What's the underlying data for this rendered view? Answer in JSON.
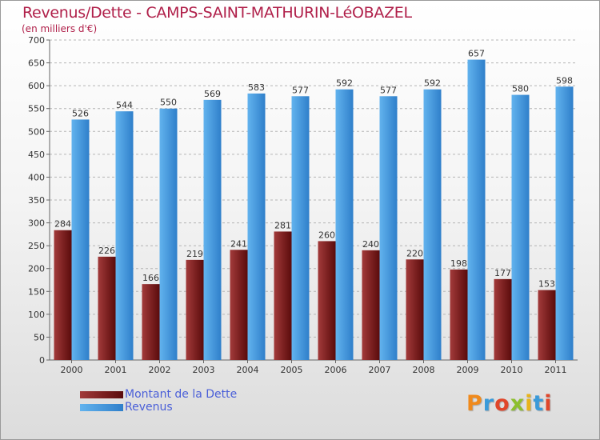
{
  "header": {
    "title": "Revenus/Dette - CAMPS-SAINT-MATHURIN-LéOBAZEL",
    "subtitle": "(en milliers d'€)"
  },
  "colors": {
    "title": "#b0204a",
    "dette_dark": "#5a0b0b",
    "dette_light": "#a23a3a",
    "revenus_dark": "#2f7fca",
    "revenus_light": "#62b3ee",
    "legend_text": "#4a5fd8"
  },
  "legend": {
    "items": [
      {
        "label": "Montant de la Dette",
        "color": "#6b1111"
      },
      {
        "label": "Revenus",
        "color": "#4a9ee0"
      }
    ]
  },
  "logo": {
    "text": "Proxiti"
  },
  "chart_data": {
    "type": "bar",
    "categories": [
      "2000",
      "2001",
      "2002",
      "2003",
      "2004",
      "2005",
      "2006",
      "2007",
      "2008",
      "2009",
      "2010",
      "2011"
    ],
    "series": [
      {
        "name": "Montant de la Dette",
        "values": [
          284,
          226,
          166,
          219,
          241,
          281,
          260,
          240,
          220,
          198,
          177,
          153
        ]
      },
      {
        "name": "Revenus",
        "values": [
          526,
          544,
          550,
          569,
          583,
          577,
          592,
          577,
          592,
          657,
          580,
          598
        ]
      }
    ],
    "ylim": [
      0,
      700
    ],
    "yticks": [
      0,
      50,
      100,
      150,
      200,
      250,
      300,
      350,
      400,
      450,
      500,
      550,
      600,
      650,
      700
    ],
    "grid": true,
    "legend_position": "bottom-left"
  }
}
